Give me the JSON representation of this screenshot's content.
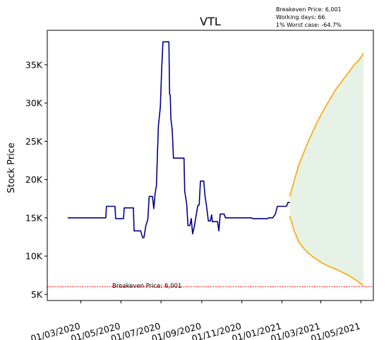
{
  "chart_data": {
    "type": "line",
    "title": "VTL",
    "xlabel": "",
    "ylabel": "Stock Price",
    "stats": [
      "Breakeven Price: 6,001",
      "Working days: 66",
      "1% Worst case: -64.7%"
    ],
    "breakeven_label": "Breakeven Price: 6,001",
    "breakeven_value": 6001,
    "x_start": "2020-01-01",
    "xlim": [
      "2020-01-10",
      "2021-05-20"
    ],
    "ylim": [
      4200,
      39500
    ],
    "y_ticks": [
      {
        "value": 5000,
        "label": "5K"
      },
      {
        "value": 10000,
        "label": "10K"
      },
      {
        "value": 15000,
        "label": "15K"
      },
      {
        "value": 20000,
        "label": "20K"
      },
      {
        "value": 25000,
        "label": "25K"
      },
      {
        "value": 30000,
        "label": "30K"
      },
      {
        "value": 35000,
        "label": "35K"
      }
    ],
    "x_ticks": [
      {
        "date": "2020-03-01",
        "label": "01/03/2020"
      },
      {
        "date": "2020-05-01",
        "label": "01/05/2020"
      },
      {
        "date": "2020-07-01",
        "label": "01/07/2020"
      },
      {
        "date": "2020-09-01",
        "label": "01/09/2020"
      },
      {
        "date": "2020-11-01",
        "label": "01/11/2020"
      },
      {
        "date": "2021-01-01",
        "label": "01/01/2021"
      },
      {
        "date": "2021-03-01",
        "label": "01/03/2021"
      },
      {
        "date": "2021-05-01",
        "label": "01/05/2021"
      }
    ],
    "colors": {
      "price": "#00008b",
      "forecast": "#ffa500",
      "band": "#e5f2e5",
      "breakeven": "#ff0000"
    },
    "series": [
      {
        "kind": "price",
        "points": [
          [
            "2020-02-10",
            15000
          ],
          [
            "2020-03-10",
            15000
          ],
          [
            "2020-04-08",
            15000
          ],
          [
            "2020-04-09",
            16500
          ],
          [
            "2020-04-22",
            16500
          ],
          [
            "2020-04-23",
            14900
          ],
          [
            "2020-05-05",
            14900
          ],
          [
            "2020-05-06",
            16300
          ],
          [
            "2020-05-20",
            16300
          ],
          [
            "2020-05-21",
            13300
          ],
          [
            "2020-05-31",
            13300
          ],
          [
            "2020-06-03",
            12400
          ],
          [
            "2020-06-05",
            12400
          ],
          [
            "2020-06-08",
            14000
          ],
          [
            "2020-06-11",
            14800
          ],
          [
            "2020-06-13",
            17800
          ],
          [
            "2020-06-18",
            17800
          ],
          [
            "2020-06-20",
            16200
          ],
          [
            "2020-06-22",
            18200
          ],
          [
            "2020-06-24",
            19200
          ],
          [
            "2020-06-27",
            27000
          ],
          [
            "2020-06-30",
            29500
          ],
          [
            "2020-07-02",
            34500
          ],
          [
            "2020-07-04",
            38000
          ],
          [
            "2020-07-10",
            38000
          ],
          [
            "2020-07-13",
            38000
          ],
          [
            "2020-07-14",
            31200
          ],
          [
            "2020-07-15",
            31000
          ],
          [
            "2020-07-16",
            28000
          ],
          [
            "2020-07-18",
            26500
          ],
          [
            "2020-07-20",
            22800
          ],
          [
            "2020-08-03",
            22800
          ],
          [
            "2020-08-05",
            22800
          ],
          [
            "2020-08-06",
            18500
          ],
          [
            "2020-08-09",
            16800
          ],
          [
            "2020-08-11",
            14000
          ],
          [
            "2020-08-14",
            14000
          ],
          [
            "2020-08-16",
            14900
          ],
          [
            "2020-08-18",
            12900
          ],
          [
            "2020-08-21",
            14000
          ],
          [
            "2020-08-24",
            15600
          ],
          [
            "2020-08-26",
            16600
          ],
          [
            "2020-08-28",
            16700
          ],
          [
            "2020-08-30",
            19800
          ],
          [
            "2020-09-04",
            19800
          ],
          [
            "2020-09-06",
            17800
          ],
          [
            "2020-09-08",
            16700
          ],
          [
            "2020-09-11",
            14600
          ],
          [
            "2020-09-14",
            14600
          ],
          [
            "2020-09-16",
            15400
          ],
          [
            "2020-09-17",
            14500
          ],
          [
            "2020-09-20",
            14500
          ],
          [
            "2020-09-25",
            14500
          ],
          [
            "2020-09-27",
            13300
          ],
          [
            "2020-09-29",
            15500
          ],
          [
            "2020-10-05",
            15500
          ],
          [
            "2020-10-07",
            15000
          ],
          [
            "2020-11-15",
            15000
          ],
          [
            "2020-11-18",
            14900
          ],
          [
            "2020-12-10",
            14900
          ],
          [
            "2020-12-12",
            15000
          ],
          [
            "2020-12-18",
            15000
          ],
          [
            "2020-12-22",
            15500
          ],
          [
            "2020-12-25",
            16500
          ],
          [
            "2021-01-08",
            16500
          ],
          [
            "2021-01-10",
            17000
          ],
          [
            "2021-01-13",
            17000
          ]
        ]
      },
      {
        "kind": "forecast-upper",
        "points": [
          [
            "2021-01-13",
            17800
          ],
          [
            "2021-01-20",
            20000
          ],
          [
            "2021-01-27",
            22000
          ],
          [
            "2021-02-03",
            23500
          ],
          [
            "2021-02-10",
            25000
          ],
          [
            "2021-02-17",
            26300
          ],
          [
            "2021-02-24",
            27600
          ],
          [
            "2021-03-03",
            28700
          ],
          [
            "2021-03-10",
            29800
          ],
          [
            "2021-03-17",
            30800
          ],
          [
            "2021-03-24",
            31800
          ],
          [
            "2021-03-31",
            32600
          ],
          [
            "2021-04-07",
            33400
          ],
          [
            "2021-04-14",
            34200
          ],
          [
            "2021-04-21",
            35000
          ],
          [
            "2021-04-28",
            35600
          ],
          [
            "2021-05-05",
            36500
          ]
        ]
      },
      {
        "kind": "forecast-lower",
        "points": [
          [
            "2021-01-13",
            15200
          ],
          [
            "2021-01-20",
            13200
          ],
          [
            "2021-01-27",
            11800
          ],
          [
            "2021-02-03",
            11000
          ],
          [
            "2021-02-10",
            10400
          ],
          [
            "2021-02-17",
            9900
          ],
          [
            "2021-02-24",
            9500
          ],
          [
            "2021-03-03",
            9100
          ],
          [
            "2021-03-10",
            8800
          ],
          [
            "2021-03-17",
            8500
          ],
          [
            "2021-03-24",
            8300
          ],
          [
            "2021-03-31",
            8000
          ],
          [
            "2021-04-07",
            7700
          ],
          [
            "2021-04-14",
            7400
          ],
          [
            "2021-04-21",
            7000
          ],
          [
            "2021-04-28",
            6600
          ],
          [
            "2021-05-05",
            6100
          ]
        ]
      }
    ]
  }
}
